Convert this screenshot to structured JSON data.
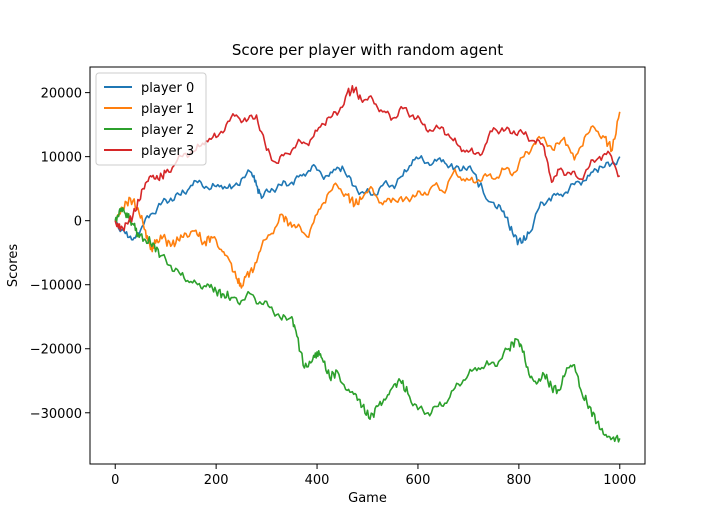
{
  "chart_data": {
    "type": "line",
    "title": "Score per player with random agent",
    "xlabel": "Game",
    "ylabel": "Scores",
    "xlim": [
      -50,
      1050
    ],
    "ylim": [
      -38000,
      24000
    ],
    "xticks": [
      0,
      200,
      400,
      600,
      800,
      1000
    ],
    "yticks": [
      -30000,
      -20000,
      -10000,
      0,
      10000,
      20000
    ],
    "legend_position": "upper-left",
    "grid": false,
    "series": [
      {
        "name": "player 0",
        "color": "#1f77b4",
        "points": [
          [
            0,
            0
          ],
          [
            20,
            -2000
          ],
          [
            35,
            -3000
          ],
          [
            50,
            -1500
          ],
          [
            70,
            1000
          ],
          [
            90,
            2500
          ],
          [
            110,
            3500
          ],
          [
            130,
            4000
          ],
          [
            150,
            5500
          ],
          [
            170,
            6000
          ],
          [
            190,
            5000
          ],
          [
            210,
            5500
          ],
          [
            230,
            5000
          ],
          [
            250,
            6500
          ],
          [
            270,
            7500
          ],
          [
            280,
            5500
          ],
          [
            290,
            3500
          ],
          [
            310,
            5000
          ],
          [
            330,
            5500
          ],
          [
            350,
            6000
          ],
          [
            370,
            7000
          ],
          [
            390,
            8500
          ],
          [
            410,
            7000
          ],
          [
            430,
            7500
          ],
          [
            450,
            8500
          ],
          [
            470,
            5500
          ],
          [
            490,
            4500
          ],
          [
            510,
            4000
          ],
          [
            530,
            5500
          ],
          [
            550,
            5500
          ],
          [
            570,
            7000
          ],
          [
            590,
            9500
          ],
          [
            610,
            9500
          ],
          [
            630,
            9000
          ],
          [
            650,
            9500
          ],
          [
            670,
            8000
          ],
          [
            690,
            8500
          ],
          [
            710,
            7500
          ],
          [
            740,
            3000
          ],
          [
            760,
            2500
          ],
          [
            775,
            500
          ],
          [
            790,
            -2500
          ],
          [
            805,
            -3500
          ],
          [
            820,
            -2000
          ],
          [
            840,
            2000
          ],
          [
            860,
            3500
          ],
          [
            880,
            4000
          ],
          [
            900,
            5000
          ],
          [
            920,
            6000
          ],
          [
            940,
            7000
          ],
          [
            960,
            8500
          ],
          [
            980,
            8500
          ],
          [
            1000,
            10000
          ]
        ]
      },
      {
        "name": "player 1",
        "color": "#ff7f0e",
        "points": [
          [
            0,
            0
          ],
          [
            15,
            2000
          ],
          [
            30,
            3500
          ],
          [
            45,
            2000
          ],
          [
            60,
            -1500
          ],
          [
            70,
            -4500
          ],
          [
            80,
            -3500
          ],
          [
            95,
            -2500
          ],
          [
            110,
            -4000
          ],
          [
            125,
            -3000
          ],
          [
            140,
            -2000
          ],
          [
            160,
            -1500
          ],
          [
            175,
            -3500
          ],
          [
            190,
            -2500
          ],
          [
            210,
            -4500
          ],
          [
            225,
            -6000
          ],
          [
            240,
            -9000
          ],
          [
            250,
            -10500
          ],
          [
            260,
            -8500
          ],
          [
            275,
            -7500
          ],
          [
            290,
            -4000
          ],
          [
            310,
            -2000
          ],
          [
            330,
            1000
          ],
          [
            345,
            -500
          ],
          [
            360,
            -1000
          ],
          [
            380,
            -2500
          ],
          [
            400,
            1000
          ],
          [
            420,
            4000
          ],
          [
            440,
            5500
          ],
          [
            460,
            4000
          ],
          [
            475,
            2500
          ],
          [
            490,
            3500
          ],
          [
            510,
            5000
          ],
          [
            530,
            2500
          ],
          [
            550,
            3500
          ],
          [
            570,
            3000
          ],
          [
            590,
            4000
          ],
          [
            610,
            4000
          ],
          [
            630,
            5500
          ],
          [
            650,
            4500
          ],
          [
            670,
            7500
          ],
          [
            690,
            6500
          ],
          [
            710,
            6000
          ],
          [
            730,
            7000
          ],
          [
            750,
            6500
          ],
          [
            770,
            8000
          ],
          [
            790,
            7500
          ],
          [
            810,
            10000
          ],
          [
            830,
            12000
          ],
          [
            850,
            13000
          ],
          [
            870,
            11000
          ],
          [
            890,
            13000
          ],
          [
            910,
            9500
          ],
          [
            930,
            13000
          ],
          [
            950,
            14500
          ],
          [
            970,
            13000
          ],
          [
            985,
            11000
          ],
          [
            1000,
            17000
          ]
        ]
      },
      {
        "name": "player 2",
        "color": "#2ca02c",
        "points": [
          [
            0,
            0
          ],
          [
            8,
            1500
          ],
          [
            15,
            2000
          ],
          [
            25,
            500
          ],
          [
            35,
            -500
          ],
          [
            45,
            -2000
          ],
          [
            60,
            -3000
          ],
          [
            75,
            -3500
          ],
          [
            90,
            -5500
          ],
          [
            110,
            -7000
          ],
          [
            130,
            -8500
          ],
          [
            150,
            -9500
          ],
          [
            170,
            -10500
          ],
          [
            185,
            -10000
          ],
          [
            200,
            -11000
          ],
          [
            215,
            -11500
          ],
          [
            230,
            -12000
          ],
          [
            250,
            -12500
          ],
          [
            270,
            -11500
          ],
          [
            290,
            -13000
          ],
          [
            310,
            -13500
          ],
          [
            330,
            -15500
          ],
          [
            350,
            -15000
          ],
          [
            360,
            -18000
          ],
          [
            375,
            -23000
          ],
          [
            390,
            -22000
          ],
          [
            400,
            -20500
          ],
          [
            410,
            -21500
          ],
          [
            425,
            -24500
          ],
          [
            440,
            -23500
          ],
          [
            460,
            -26500
          ],
          [
            475,
            -27000
          ],
          [
            490,
            -29000
          ],
          [
            505,
            -31000
          ],
          [
            520,
            -29000
          ],
          [
            535,
            -28000
          ],
          [
            550,
            -26000
          ],
          [
            565,
            -25000
          ],
          [
            580,
            -27000
          ],
          [
            600,
            -29500
          ],
          [
            620,
            -30000
          ],
          [
            640,
            -29000
          ],
          [
            660,
            -28000
          ],
          [
            680,
            -25500
          ],
          [
            700,
            -24000
          ],
          [
            720,
            -23000
          ],
          [
            740,
            -22500
          ],
          [
            760,
            -22000
          ],
          [
            780,
            -20000
          ],
          [
            795,
            -18500
          ],
          [
            805,
            -19500
          ],
          [
            820,
            -24000
          ],
          [
            835,
            -25500
          ],
          [
            850,
            -24000
          ],
          [
            865,
            -26000
          ],
          [
            880,
            -26500
          ],
          [
            895,
            -23000
          ],
          [
            910,
            -22500
          ],
          [
            925,
            -27000
          ],
          [
            940,
            -29000
          ],
          [
            955,
            -31500
          ],
          [
            970,
            -33500
          ],
          [
            985,
            -34000
          ],
          [
            1000,
            -34000
          ]
        ]
      },
      {
        "name": "player 3",
        "color": "#d62728",
        "points": [
          [
            0,
            0
          ],
          [
            10,
            -1500
          ],
          [
            25,
            -500
          ],
          [
            40,
            1500
          ],
          [
            55,
            5000
          ],
          [
            70,
            7000
          ],
          [
            85,
            6500
          ],
          [
            100,
            7500
          ],
          [
            120,
            9000
          ],
          [
            140,
            10500
          ],
          [
            160,
            11000
          ],
          [
            180,
            12500
          ],
          [
            200,
            13000
          ],
          [
            220,
            15000
          ],
          [
            240,
            16500
          ],
          [
            260,
            15500
          ],
          [
            280,
            16500
          ],
          [
            300,
            11000
          ],
          [
            320,
            9000
          ],
          [
            340,
            10500
          ],
          [
            360,
            12000
          ],
          [
            380,
            12000
          ],
          [
            400,
            14000
          ],
          [
            420,
            16000
          ],
          [
            440,
            16500
          ],
          [
            460,
            20000
          ],
          [
            475,
            20500
          ],
          [
            490,
            18500
          ],
          [
            510,
            19000
          ],
          [
            530,
            17000
          ],
          [
            550,
            16000
          ],
          [
            570,
            17500
          ],
          [
            590,
            16500
          ],
          [
            610,
            15000
          ],
          [
            630,
            14000
          ],
          [
            650,
            14500
          ],
          [
            670,
            12500
          ],
          [
            690,
            11000
          ],
          [
            710,
            10500
          ],
          [
            730,
            11000
          ],
          [
            750,
            14500
          ],
          [
            770,
            14000
          ],
          [
            790,
            14000
          ],
          [
            810,
            13500
          ],
          [
            830,
            12500
          ],
          [
            850,
            11500
          ],
          [
            865,
            6000
          ],
          [
            880,
            8000
          ],
          [
            900,
            7500
          ],
          [
            920,
            6500
          ],
          [
            940,
            8500
          ],
          [
            960,
            10000
          ],
          [
            980,
            10500
          ],
          [
            1000,
            7000
          ]
        ]
      }
    ]
  }
}
